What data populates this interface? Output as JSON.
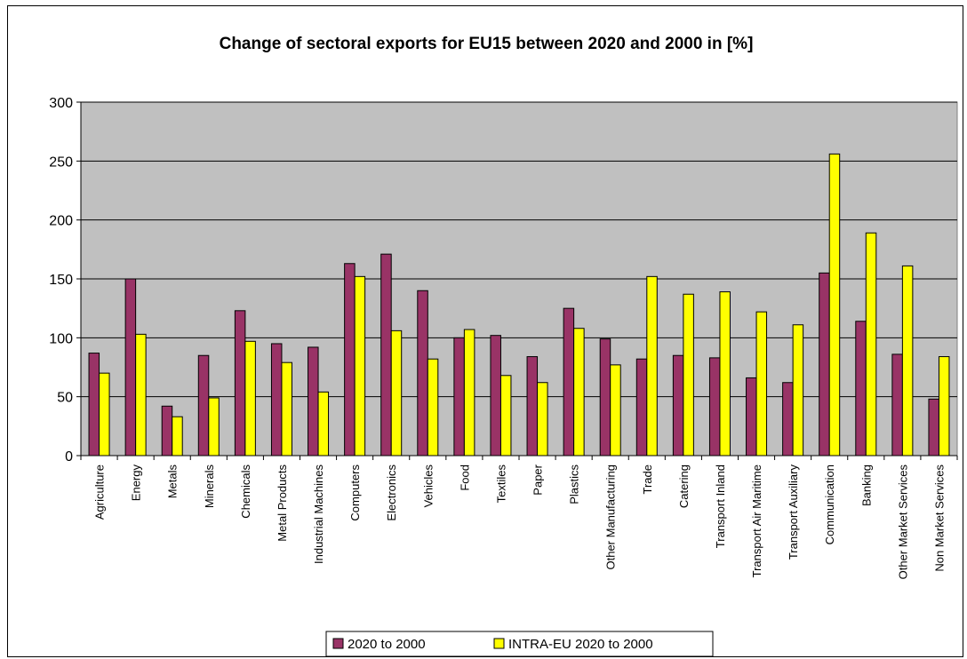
{
  "chart_data": {
    "type": "bar",
    "title": "Change of sectoral exports for EU15 between 2020 and 2000 in  [%]",
    "xlabel": "",
    "ylabel": "",
    "ylim": [
      0,
      300
    ],
    "yticks": [
      0,
      50,
      100,
      150,
      200,
      250,
      300
    ],
    "grid": true,
    "legend_position": "bottom",
    "plot_background": "#C0C0C0",
    "categories": [
      "Agriculture",
      "Energy",
      "Metals",
      "Minerals",
      "Chemicals",
      "Metal Products",
      "Industrial Machines",
      "Computers",
      "Electronics",
      "Vehicles",
      "Food",
      "Textiles",
      "Paper",
      "Plastics",
      "Other Manufacturing",
      "Trade",
      "Catering",
      "Transport Inland",
      "Transport Air Maritime",
      "Transport Auxiliary",
      "Communication",
      "Banking",
      "Other Market Services",
      "Non Market Services"
    ],
    "series": [
      {
        "name": "2020 to 2000",
        "color": "#993366",
        "values": [
          87,
          150,
          42,
          85,
          123,
          95,
          92,
          163,
          171,
          140,
          100,
          102,
          84,
          125,
          99,
          82,
          85,
          83,
          66,
          62,
          155,
          114,
          86,
          48
        ]
      },
      {
        "name": "INTRA-EU 2020 to 2000",
        "color": "#FFFF00",
        "values": [
          70,
          103,
          33,
          49,
          97,
          79,
          54,
          152,
          106,
          82,
          107,
          68,
          62,
          108,
          77,
          152,
          137,
          139,
          122,
          111,
          256,
          189,
          161,
          84
        ]
      }
    ]
  }
}
